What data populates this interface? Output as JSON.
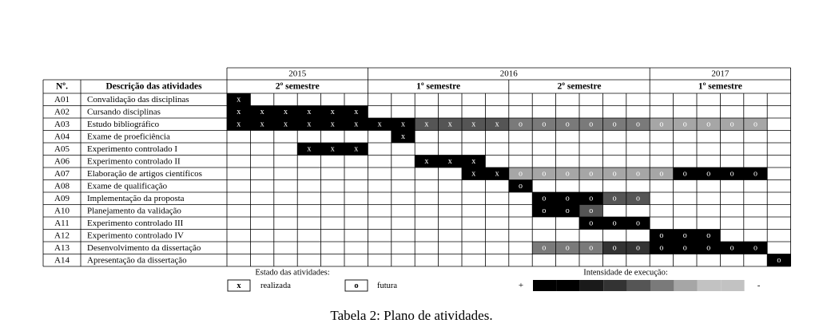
{
  "header": {
    "col_num": "Nº.",
    "col_desc": "Descrição das atividades",
    "years": [
      {
        "label": "2015",
        "span": 6
      },
      {
        "label": "2016",
        "span": 12
      },
      {
        "label": "2017",
        "span": 6
      }
    ],
    "semesters": [
      {
        "label": "2º semestre",
        "span": 6
      },
      {
        "label": "1º semestre",
        "span": 6
      },
      {
        "label": "2º semestre",
        "span": 6
      },
      {
        "label": "1º semestre",
        "span": 6
      }
    ]
  },
  "activities": [
    {
      "id": "A01",
      "desc": "Convalidação das disciplinas",
      "cells": [
        [
          0,
          "x",
          0
        ]
      ]
    },
    {
      "id": "A02",
      "desc": "Cursando disciplinas",
      "cells": [
        [
          0,
          "x",
          0
        ],
        [
          1,
          "x",
          0
        ],
        [
          2,
          "x",
          0
        ],
        [
          3,
          "x",
          0
        ],
        [
          4,
          "x",
          0
        ],
        [
          5,
          "x",
          0
        ]
      ]
    },
    {
      "id": "A03",
      "desc": "Estudo bibliográfico",
      "cells": [
        [
          0,
          "x",
          0
        ],
        [
          1,
          "x",
          0
        ],
        [
          2,
          "x",
          0
        ],
        [
          3,
          "x",
          0
        ],
        [
          4,
          "x",
          0
        ],
        [
          5,
          "x",
          0
        ],
        [
          6,
          "x",
          0
        ],
        [
          7,
          "x",
          0
        ],
        [
          8,
          "x",
          3
        ],
        [
          9,
          "x",
          3
        ],
        [
          10,
          "x",
          3
        ],
        [
          11,
          "x",
          3
        ],
        [
          12,
          "o",
          4
        ],
        [
          13,
          "o",
          4
        ],
        [
          14,
          "o",
          4
        ],
        [
          15,
          "o",
          4
        ],
        [
          16,
          "o",
          4
        ],
        [
          17,
          "o",
          4
        ],
        [
          18,
          "o",
          5
        ],
        [
          19,
          "o",
          5
        ],
        [
          20,
          "o",
          5
        ],
        [
          21,
          "o",
          5
        ],
        [
          22,
          "o",
          5
        ]
      ]
    },
    {
      "id": "A04",
      "desc": "Exame de proeficiência",
      "cells": [
        [
          7,
          "x",
          0
        ]
      ]
    },
    {
      "id": "A05",
      "desc": "Experimento controlado I",
      "cells": [
        [
          3,
          "x",
          0
        ],
        [
          4,
          "x",
          0
        ],
        [
          5,
          "x",
          0
        ]
      ]
    },
    {
      "id": "A06",
      "desc": "Experimento controlado II",
      "cells": [
        [
          8,
          "x",
          0
        ],
        [
          9,
          "x",
          0
        ],
        [
          10,
          "x",
          0
        ]
      ]
    },
    {
      "id": "A07",
      "desc": "Elaboração de artigos científicos",
      "cells": [
        [
          10,
          "x",
          0
        ],
        [
          11,
          "x",
          0
        ],
        [
          12,
          "o",
          5
        ],
        [
          13,
          "o",
          5
        ],
        [
          14,
          "o",
          5
        ],
        [
          15,
          "o",
          5
        ],
        [
          16,
          "o",
          5
        ],
        [
          17,
          "o",
          5
        ],
        [
          18,
          "o",
          5
        ],
        [
          19,
          "o",
          0
        ],
        [
          20,
          "o",
          0
        ],
        [
          21,
          "o",
          0
        ],
        [
          22,
          "o",
          0
        ]
      ]
    },
    {
      "id": "A08",
      "desc": "Exame de qualificação",
      "cells": [
        [
          12,
          "o",
          0
        ]
      ]
    },
    {
      "id": "A09",
      "desc": "Implementação da proposta",
      "cells": [
        [
          13,
          "o",
          0
        ],
        [
          14,
          "o",
          0
        ],
        [
          15,
          "o",
          0
        ],
        [
          16,
          "o",
          3
        ],
        [
          17,
          "o",
          3
        ]
      ]
    },
    {
      "id": "A10",
      "desc": "Planejamento da validação",
      "cells": [
        [
          13,
          "o",
          0
        ],
        [
          14,
          "o",
          0
        ],
        [
          15,
          "o",
          3
        ]
      ]
    },
    {
      "id": "A11",
      "desc": "Experimento controlado III",
      "cells": [
        [
          15,
          "o",
          0
        ],
        [
          16,
          "o",
          0
        ],
        [
          17,
          "o",
          0
        ]
      ]
    },
    {
      "id": "A12",
      "desc": "Experimento controlado IV",
      "cells": [
        [
          18,
          "o",
          0
        ],
        [
          19,
          "o",
          0
        ],
        [
          20,
          "o",
          0
        ]
      ]
    },
    {
      "id": "A13",
      "desc": "Desenvolvimento da dissertação",
      "cells": [
        [
          13,
          "o",
          4
        ],
        [
          14,
          "o",
          4
        ],
        [
          15,
          "o",
          4
        ],
        [
          16,
          "o",
          2
        ],
        [
          17,
          "o",
          2
        ],
        [
          18,
          "o",
          0
        ],
        [
          19,
          "o",
          0
        ],
        [
          20,
          "o",
          0
        ],
        [
          21,
          "o",
          0
        ],
        [
          22,
          "o",
          0
        ]
      ]
    },
    {
      "id": "A14",
      "desc": "Apresentação da dissertação",
      "cells": [
        [
          23,
          "o",
          0
        ]
      ]
    }
  ],
  "legend": {
    "state_title": "Estado das atividades:",
    "done_symbol": "x",
    "done_label": "realizada",
    "future_symbol": "o",
    "future_label": "futura",
    "intensity_title": "Intensidade de execução:",
    "plus": "+",
    "minus": "-",
    "intensity_levels": [
      0,
      0,
      1,
      2,
      3,
      4,
      5,
      6,
      6
    ]
  },
  "colors": {
    "levels": [
      "#000000",
      "#1a1a1a",
      "#333333",
      "#555555",
      "#7a7a7a",
      "#a6a6a6",
      "#c2c2c2"
    ],
    "border": "#000000"
  },
  "caption": "Tabela 2: Plano de atividades."
}
